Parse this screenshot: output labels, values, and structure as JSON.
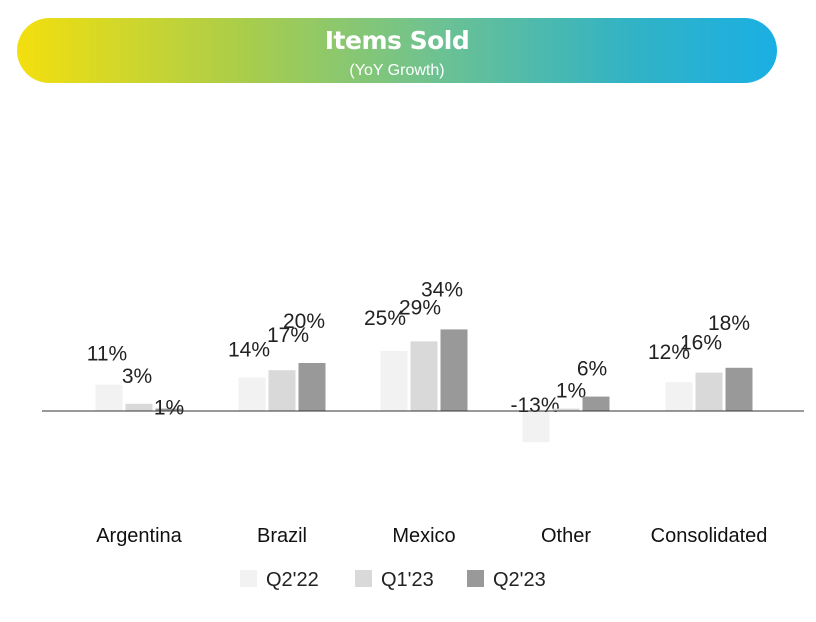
{
  "header": {
    "title": "Items Sold",
    "subtitle": "(YoY Growth)"
  },
  "colors": {
    "gradient": [
      "#f3df0e",
      "#a9cd4b",
      "#6ec291",
      "#33b3c4",
      "#1aafe3"
    ],
    "series": [
      "#f2f2f2",
      "#d9d9d9",
      "#999999"
    ]
  },
  "chart_data": {
    "type": "bar",
    "categories": [
      "Argentina",
      "Brazil",
      "Mexico",
      "Other",
      "Consolidated"
    ],
    "series": [
      {
        "name": "Q2'22",
        "values": [
          11,
          14,
          25,
          -13,
          12
        ],
        "labels": [
          "11%",
          "14%",
          "25%",
          "-13%",
          "12%"
        ]
      },
      {
        "name": "Q1'23",
        "values": [
          3,
          17,
          29,
          1,
          16
        ],
        "labels": [
          "3%",
          "17%",
          "29%",
          "1%",
          "16%"
        ]
      },
      {
        "name": "Q2'23",
        "values": [
          1,
          20,
          34,
          6,
          18
        ],
        "labels": [
          "1%",
          "20%",
          "34%",
          "6%",
          "18%"
        ]
      }
    ],
    "legend_position": "bottom",
    "grid": false
  }
}
